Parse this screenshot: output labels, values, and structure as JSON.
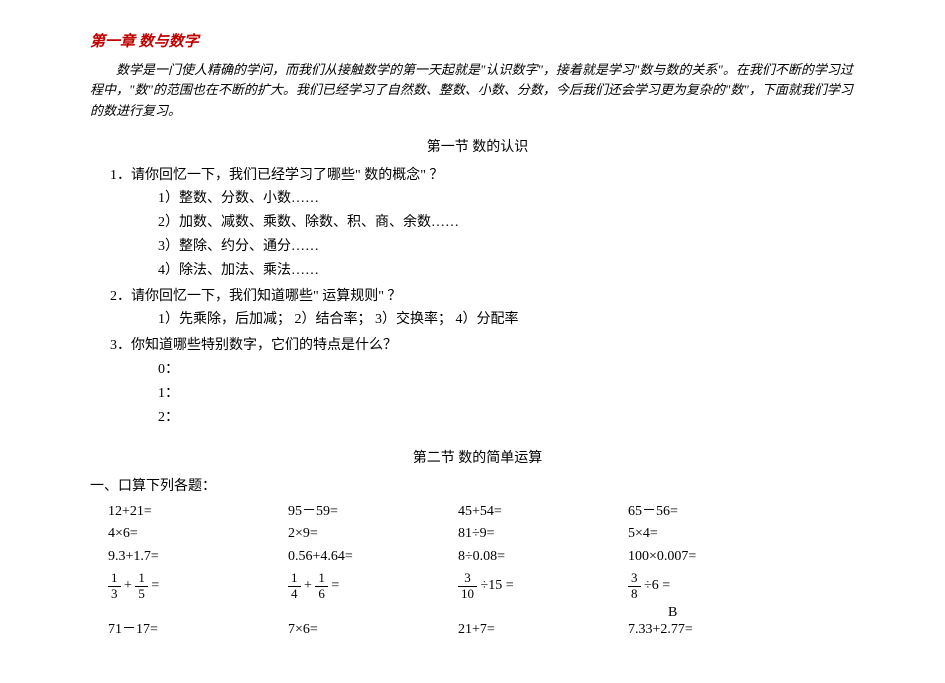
{
  "chapter_title": "第一章    数与数字",
  "intro": "数学是一门使人精确的学问，而我们从接触数学的第一天起就是\"认识数字\"，接着就是学习\"数与数的关系\"。在我们不断的学习过程中，\"数\"的范围也在不断的扩大。我们已经学习了自然数、整数、小数、分数，今后我们还会学习更为复杂的\"数\"，下面就我们学习的数进行复习。",
  "section1_title": "第一节   数的认识",
  "q1": "1．请你回忆一下，我们已经学习了哪些\" 数的概念\" ？",
  "q1_1": "1）整数、分数、小数……",
  "q1_2": "2）加数、减数、乘数、除数、积、商、余数……",
  "q1_3": "3）整除、约分、通分……",
  "q1_4": "4）除法、加法、乘法……",
  "q2": "2．请你回忆一下，我们知道哪些\" 运算规则\" ？",
  "q2_1": "1）先乘除，后加减；  2）结合率；  3）交换率；  4）分配率",
  "q3": "3．你知道哪些特别数字，它们的特点是什么？",
  "q3_0": "0：",
  "q3_1_": "1：",
  "q3_2_": "2：",
  "section2_title": "第二节   数的简单运算",
  "calc_label": "一、口算下列各题：",
  "rows": {
    "r1": {
      "c1": "12+21=",
      "c2": "95－59=",
      "c3": "45+54=",
      "c4": "65－56="
    },
    "r2": {
      "c1": "4×6=",
      "c2": "2×9=",
      "c3": "81÷9=",
      "c4": "5×4="
    },
    "r3": {
      "c1": "9.3+1.7=",
      "c2": "0.56+4.64=",
      "c3": "8÷0.08=",
      "c4": "100×0.007="
    },
    "r5": {
      "c1": "71－17=",
      "c2": "7×6=",
      "c3": "21+7=",
      "c4": "7.33+2.77="
    }
  },
  "fracs": {
    "f1a_n": "1",
    "f1a_d": "3",
    "f1b_n": "1",
    "f1b_d": "5",
    "f2a_n": "1",
    "f2a_d": "4",
    "f2b_n": "1",
    "f2b_d": "6",
    "f3a_n": "3",
    "f3a_d": "10",
    "f3_val": "15",
    "f4a_n": "3",
    "f4a_d": "8",
    "f4_val": "6"
  },
  "b_mark": "B"
}
